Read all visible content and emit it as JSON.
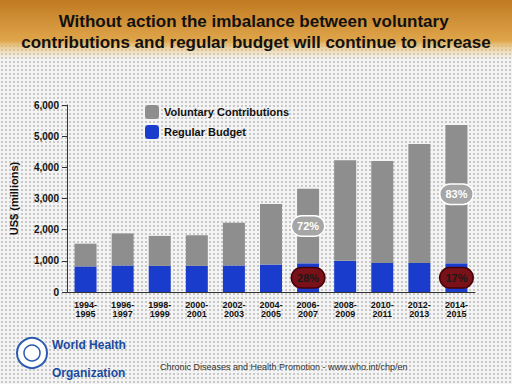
{
  "chart_data": {
    "type": "bar",
    "title": "Without action the imbalance between voluntary contributions and regular budget will continue to increase",
    "y_label": "US$ (millions)",
    "categories": [
      "1994-1995",
      "1996-1997",
      "1998-1999",
      "2000-2001",
      "2002-2003",
      "2004-2005",
      "2006-2007",
      "2008-2009",
      "2010-2011",
      "2012-2013",
      "2014-2015"
    ],
    "series": [
      {
        "name": "Regular Budget",
        "color": "#1a3ccc",
        "values": [
          820,
          850,
          840,
          840,
          850,
          880,
          920,
          1000,
          930,
          930,
          920
        ]
      },
      {
        "name": "Voluntary Contributions",
        "color": "#8e8e8e",
        "values": [
          730,
          1030,
          960,
          980,
          1370,
          1940,
          2390,
          3230,
          3270,
          3820,
          4440
        ]
      }
    ],
    "stacked": true,
    "ylim": [
      0,
      6000
    ],
    "yticks": [
      0,
      {
        "value": 1000,
        "label": "1,000"
      },
      {
        "value": 2000,
        "label": "2,000"
      },
      {
        "value": 3000,
        "label": "3,000"
      },
      {
        "value": 4000,
        "label": "4,000"
      },
      {
        "value": 5000,
        "label": "5,000"
      },
      {
        "value": 6000,
        "label": "6,000"
      }
    ],
    "grid": false,
    "legend": "top-left",
    "data_labels": false,
    "annotations": [
      {
        "text": "72%",
        "category": "2006-2007",
        "series": "Voluntary Contributions"
      },
      {
        "text": "28%",
        "category": "2006-2007",
        "series": "Regular Budget"
      },
      {
        "text": "83%",
        "category": "2014-2015",
        "series": "Voluntary Contributions"
      },
      {
        "text": "17%",
        "category": "2014-2015",
        "series": "Regular Budget"
      }
    ],
    "footer": {
      "organization": "World Health Organization",
      "text": "Chronic Diseases and Health Promotion - www.who.int/chp/en"
    }
  }
}
